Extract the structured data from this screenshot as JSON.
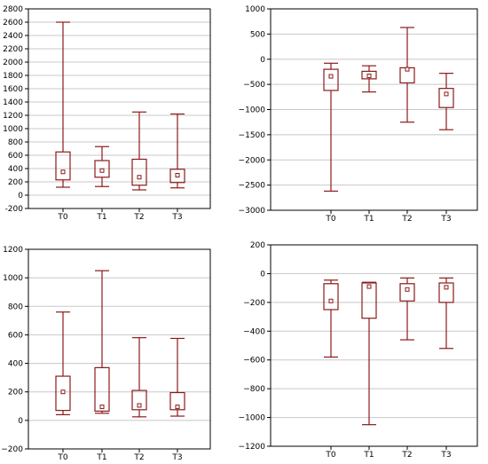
{
  "colors": {
    "box": "#8b1a1a",
    "grid": "#c8c8c8",
    "frame": "#000000",
    "background": "#ffffff"
  },
  "chart_data": [
    {
      "type": "box",
      "categories": [
        "T0",
        "T1",
        "T2",
        "T3"
      ],
      "ylim": [
        -200,
        2800
      ],
      "yticks": [
        -200,
        0,
        200,
        400,
        600,
        800,
        1000,
        1200,
        1400,
        1600,
        1800,
        2000,
        2200,
        2400,
        2600,
        2800
      ],
      "ytick_labels": [
        "-200",
        "0",
        "200",
        "400",
        "600",
        "800",
        "1000",
        "1200",
        "1400",
        "1600",
        "1800",
        "2000",
        "2200",
        "2400",
        "2600",
        "2800"
      ],
      "series": [
        {
          "category": "T0",
          "min": 120,
          "q1": 230,
          "median": 350,
          "q3": 650,
          "max": 2600
        },
        {
          "category": "T1",
          "min": 130,
          "q1": 270,
          "median": 370,
          "q3": 520,
          "max": 730
        },
        {
          "category": "T2",
          "min": 80,
          "q1": 150,
          "median": 270,
          "q3": 540,
          "max": 1250
        },
        {
          "category": "T3",
          "min": 110,
          "q1": 190,
          "median": 300,
          "q3": 390,
          "max": 1220
        }
      ],
      "grid": true
    },
    {
      "type": "box",
      "categories": [
        "T0",
        "T1",
        "T2",
        "T3"
      ],
      "ylim": [
        -3000,
        1000
      ],
      "yticks": [
        -3000,
        -2500,
        -2000,
        -1500,
        -1000,
        -500,
        0,
        500,
        1000
      ],
      "ytick_labels": [
        "−3000",
        "−2500",
        "−2000",
        "−1500",
        "−1000",
        "−500",
        "0",
        "500",
        "1000"
      ],
      "series": [
        {
          "category": "T0",
          "min": -2620,
          "q1": -620,
          "median": -340,
          "q3": -200,
          "max": -80
        },
        {
          "category": "T1",
          "min": -650,
          "q1": -390,
          "median": -330,
          "q3": -240,
          "max": -130
        },
        {
          "category": "T2",
          "min": -1250,
          "q1": -470,
          "median": -200,
          "q3": -170,
          "max": 630
        },
        {
          "category": "T3",
          "min": -1400,
          "q1": -960,
          "median": -690,
          "q3": -580,
          "max": -280
        }
      ],
      "grid": true
    },
    {
      "type": "box",
      "categories": [
        "T0",
        "T1",
        "T2",
        "T3"
      ],
      "ylim": [
        -200,
        1200
      ],
      "yticks": [
        -200,
        0,
        200,
        400,
        600,
        800,
        1000,
        1200
      ],
      "ytick_labels": [
        "−200",
        "0",
        "200",
        "400",
        "600",
        "800",
        "1000",
        "1200"
      ],
      "series": [
        {
          "category": "T0",
          "min": 40,
          "q1": 70,
          "median": 200,
          "q3": 310,
          "max": 760
        },
        {
          "category": "T1",
          "min": 50,
          "q1": 65,
          "median": 95,
          "q3": 370,
          "max": 1050
        },
        {
          "category": "T2",
          "min": 25,
          "q1": 75,
          "median": 105,
          "q3": 210,
          "max": 580
        },
        {
          "category": "T3",
          "min": 30,
          "q1": 75,
          "median": 95,
          "q3": 195,
          "max": 575
        }
      ],
      "grid": true
    },
    {
      "type": "box",
      "categories": [
        "T0",
        "T1",
        "T2",
        "T3"
      ],
      "ylim": [
        -1200,
        200
      ],
      "yticks": [
        -1200,
        -1000,
        -800,
        -600,
        -400,
        -200,
        0,
        200
      ],
      "ytick_labels": [
        "−1200",
        "−1000",
        "−800",
        "−600",
        "−400",
        "−200",
        "0",
        "200"
      ],
      "series": [
        {
          "category": "T0",
          "min": -580,
          "q1": -250,
          "median": -190,
          "q3": -70,
          "max": -45
        },
        {
          "category": "T1",
          "min": -1050,
          "q1": -310,
          "median": -90,
          "q3": -65,
          "max": -60
        },
        {
          "category": "T2",
          "min": -460,
          "q1": -190,
          "median": -110,
          "q3": -70,
          "max": -30
        },
        {
          "category": "T3",
          "min": -520,
          "q1": -200,
          "median": -95,
          "q3": -65,
          "max": -30
        }
      ],
      "grid": true
    }
  ]
}
